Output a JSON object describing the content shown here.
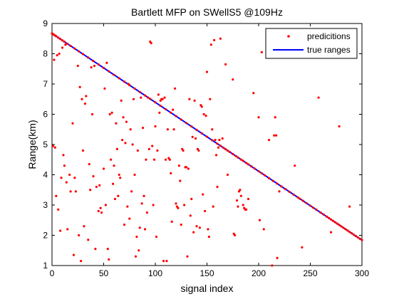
{
  "chart_data": {
    "type": "scatter",
    "title": "Bartlett MFP on SWellS5 @109Hz",
    "xlabel": "signal index",
    "ylabel": "Range(km)",
    "xlim": [
      0,
      300
    ],
    "ylim": [
      1,
      9
    ],
    "xticks": [
      0,
      50,
      100,
      150,
      200,
      250,
      300
    ],
    "yticks": [
      1,
      2,
      3,
      4,
      5,
      6,
      7,
      8,
      9
    ],
    "grid": false,
    "legend_position": "top-right",
    "series": [
      {
        "name": "predicitions",
        "style": "markers",
        "color": "#ff0000",
        "x_from_true_range": [
          0,
          1,
          2,
          3,
          4,
          6,
          8,
          10,
          12,
          15,
          18,
          22,
          26,
          30,
          35,
          40,
          45,
          50,
          55,
          60,
          65,
          70,
          75,
          80,
          85,
          90,
          95,
          100,
          105,
          110,
          115,
          120,
          125,
          130,
          135,
          140,
          145,
          150,
          155,
          160,
          163,
          166,
          168,
          170,
          172,
          175,
          178,
          180,
          183,
          185,
          188,
          190,
          193,
          196,
          200,
          203,
          206,
          210,
          214,
          218,
          222,
          226,
          230,
          234,
          238,
          240,
          243,
          246,
          250,
          253,
          256,
          260,
          263,
          266,
          268,
          270,
          272,
          274,
          276,
          278,
          280,
          282,
          284,
          286,
          288,
          290,
          292,
          294,
          296,
          298,
          300
        ],
        "points": [
          [
            1,
            4.95
          ],
          [
            2,
            7.8
          ],
          [
            3,
            4.9
          ],
          [
            4,
            3.3
          ],
          [
            5,
            7.95
          ],
          [
            6,
            2.85
          ],
          [
            7,
            8.0
          ],
          [
            8,
            2.15
          ],
          [
            9,
            3.9
          ],
          [
            10,
            8.2
          ],
          [
            11,
            4.65
          ],
          [
            12,
            4.3
          ],
          [
            13,
            8.3
          ],
          [
            14,
            3.75
          ],
          [
            15,
            2.2
          ],
          [
            17,
            4.0
          ],
          [
            18,
            3.45
          ],
          [
            20,
            5.7
          ],
          [
            21,
            1.35
          ],
          [
            22,
            3.9
          ],
          [
            23,
            3.45
          ],
          [
            25,
            7.6
          ],
          [
            26,
            2.0
          ],
          [
            27,
            6.9
          ],
          [
            28,
            1.15
          ],
          [
            29,
            6.5
          ],
          [
            30,
            4.8
          ],
          [
            31,
            2.3
          ],
          [
            32,
            6.35
          ],
          [
            33,
            6.6
          ],
          [
            35,
            1.85
          ],
          [
            36,
            4.35
          ],
          [
            37,
            3.5
          ],
          [
            38,
            7.55
          ],
          [
            39,
            6.0
          ],
          [
            40,
            3.95
          ],
          [
            41,
            7.6
          ],
          [
            42,
            1.55
          ],
          [
            43,
            3.6
          ],
          [
            45,
            2.8
          ],
          [
            46,
            3.65
          ],
          [
            47,
            2.9
          ],
          [
            48,
            2.75
          ],
          [
            50,
            4.2
          ],
          [
            51,
            6.85
          ],
          [
            52,
            3.0
          ],
          [
            53,
            7.7
          ],
          [
            54,
            1.55
          ],
          [
            55,
            1.2
          ],
          [
            56,
            6.0
          ],
          [
            57,
            4.5
          ],
          [
            58,
            6.05
          ],
          [
            59,
            3.7
          ],
          [
            60,
            4.3
          ],
          [
            61,
            3.2
          ],
          [
            62,
            5.7
          ],
          [
            63,
            4.85
          ],
          [
            64,
            3.3
          ],
          [
            65,
            4.0
          ],
          [
            66,
            3.9
          ],
          [
            67,
            6.45
          ],
          [
            68,
            5.15
          ],
          [
            69,
            5.9
          ],
          [
            70,
            2.35
          ],
          [
            71,
            5.05
          ],
          [
            72,
            5.75
          ],
          [
            73,
            2.95
          ],
          [
            74,
            7.0
          ],
          [
            75,
            2.55
          ],
          [
            76,
            5.5
          ],
          [
            77,
            3.45
          ],
          [
            78,
            5.0
          ],
          [
            79,
            6.5
          ],
          [
            80,
            4.0
          ],
          [
            81,
            1.3
          ],
          [
            82,
            1.95
          ],
          [
            83,
            4.8
          ],
          [
            84,
            1.5
          ],
          [
            85,
            2.25
          ],
          [
            86,
            6.55
          ],
          [
            87,
            3.05
          ],
          [
            88,
            5.55
          ],
          [
            89,
            3.3
          ],
          [
            90,
            2.2
          ],
          [
            91,
            4.5
          ],
          [
            92,
            2.75
          ],
          [
            93,
            6.55
          ],
          [
            94,
            4.85
          ],
          [
            95,
            8.4
          ],
          [
            96,
            8.35
          ],
          [
            97,
            4.95
          ],
          [
            98,
            3.0
          ],
          [
            99,
            4.5
          ],
          [
            100,
            5.6
          ],
          [
            101,
            1.95
          ],
          [
            102,
            4.8
          ],
          [
            103,
            6.65
          ],
          [
            104,
            6.05
          ],
          [
            105,
            6.45
          ],
          [
            106,
            6.5
          ],
          [
            107,
            6.5
          ],
          [
            108,
            1.15
          ],
          [
            109,
            6.55
          ],
          [
            110,
            4.5
          ],
          [
            111,
            1.15
          ],
          [
            112,
            5.5
          ],
          [
            113,
            4.55
          ],
          [
            114,
            4.5
          ],
          [
            115,
            4.05
          ],
          [
            116,
            2.45
          ],
          [
            117,
            6.15
          ],
          [
            118,
            5.5
          ],
          [
            119,
            6.85
          ],
          [
            120,
            3.05
          ],
          [
            121,
            2.95
          ],
          [
            122,
            2.9
          ],
          [
            123,
            4.3
          ],
          [
            124,
            3.8
          ],
          [
            125,
            2.35
          ],
          [
            126,
            4.85
          ],
          [
            127,
            4.8
          ],
          [
            128,
            3.0
          ],
          [
            129,
            4.25
          ],
          [
            130,
            4.25
          ],
          [
            131,
            1.3
          ],
          [
            132,
            4.2
          ],
          [
            133,
            6.5
          ],
          [
            134,
            2.65
          ],
          [
            135,
            3.2
          ],
          [
            136,
            5.25
          ],
          [
            137,
            2.1
          ],
          [
            138,
            6.45
          ],
          [
            139,
            5.2
          ],
          [
            140,
            2.3
          ],
          [
            141,
            4.85
          ],
          [
            142,
            4.8
          ],
          [
            143,
            2.25
          ],
          [
            144,
            6.3
          ],
          [
            145,
            6.25
          ],
          [
            146,
            3.35
          ],
          [
            147,
            6.0
          ],
          [
            148,
            2.8
          ],
          [
            149,
            5.95
          ],
          [
            150,
            7.4
          ],
          [
            151,
            2.2
          ],
          [
            152,
            1.95
          ],
          [
            153,
            6.5
          ],
          [
            154,
            8.3
          ],
          [
            155,
            5.5
          ],
          [
            156,
            2.95
          ],
          [
            157,
            8.45
          ],
          [
            158,
            5.15
          ],
          [
            159,
            4.65
          ],
          [
            160,
            3.6
          ],
          [
            161,
            4.9
          ],
          [
            162,
            5.15
          ],
          [
            163,
            8.5
          ],
          [
            165,
            5.2
          ],
          [
            168,
            7.65
          ],
          [
            170,
            4.0
          ],
          [
            175,
            7.15
          ],
          [
            176,
            2.05
          ],
          [
            177,
            2.0
          ],
          [
            179,
            3.15
          ],
          [
            180,
            2.95
          ],
          [
            181,
            3.45
          ],
          [
            182,
            3.5
          ],
          [
            183,
            3.3
          ],
          [
            185,
            3.0
          ],
          [
            186,
            2.9
          ],
          [
            187,
            2.85
          ],
          [
            188,
            2.85
          ],
          [
            190,
            3.2
          ],
          [
            195,
            6.7
          ],
          [
            200,
            5.9
          ],
          [
            201,
            2.5
          ],
          [
            203,
            8.05
          ],
          [
            205,
            2.2
          ],
          [
            210,
            5.15
          ],
          [
            213,
            1.0
          ],
          [
            215,
            5.3
          ],
          [
            216,
            5.9
          ],
          [
            217,
            5.3
          ],
          [
            218,
            1.25
          ],
          [
            220,
            3.45
          ],
          [
            235,
            4.3
          ],
          [
            242,
            1.6
          ],
          [
            258,
            6.55
          ],
          [
            270,
            2.1
          ],
          [
            278,
            5.6
          ],
          [
            288,
            2.95
          ]
        ]
      },
      {
        "name": "true ranges",
        "style": "line",
        "color": "#0000ff",
        "x": [
          0,
          300
        ],
        "y": [
          8.67,
          1.84
        ]
      }
    ]
  }
}
